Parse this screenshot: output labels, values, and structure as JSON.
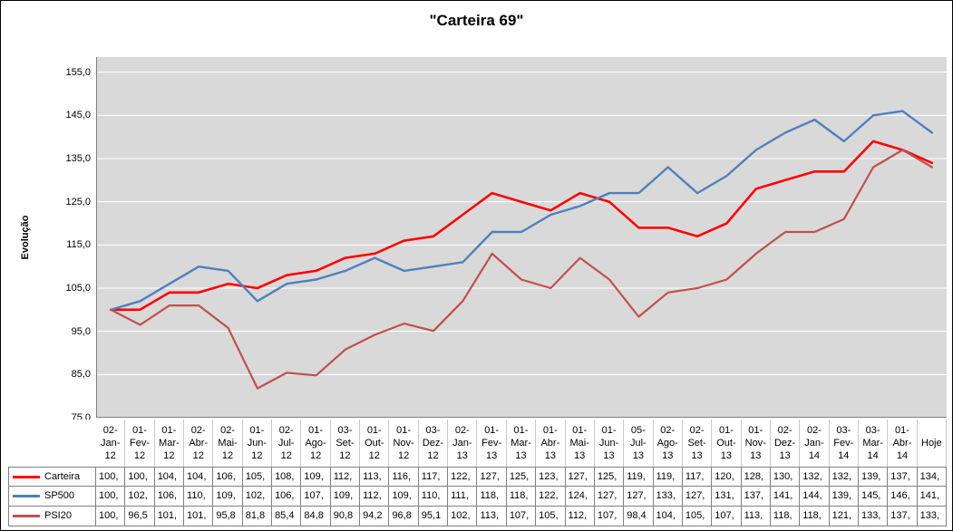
{
  "chart_data": {
    "type": "line",
    "title": "\"Carteira 69\"",
    "ylabel": "Evolução",
    "ylim": [
      75,
      158.5
    ],
    "ytick_start": 75,
    "ytick_step": 10,
    "ytick_labels": [
      "75,0",
      "85,0",
      "95,0",
      "105,0",
      "115,0",
      "125,0",
      "135,0",
      "145,0",
      "155,0"
    ],
    "grid": true,
    "legend_position": "data-table-left",
    "categories": [
      "02-Jan-12",
      "01-Fev-12",
      "01-Mar-12",
      "02-Abr-12",
      "02-Mai-12",
      "01-Jun-12",
      "02-Jul-12",
      "01-Ago-12",
      "03-Set-12",
      "01-Out-12",
      "01-Nov-12",
      "03-Dez-12",
      "02-Jan-13",
      "01-Fev-13",
      "01-Mar-13",
      "01-Abr-13",
      "01-Mai-13",
      "01-Jun-13",
      "05-Jul-13",
      "02-Ago-13",
      "02-Set-13",
      "01-Out-13",
      "01-Nov-13",
      "02-Dez-13",
      "02-Jan-14",
      "03-Fev-14",
      "03-Mar-14",
      "01-Abr-14",
      "Hoje"
    ],
    "series": [
      {
        "name": "Carteira",
        "color": "#FF0000",
        "values": [
          100,
          100,
          104,
          104,
          106,
          105,
          108,
          109,
          112,
          113,
          116,
          117,
          122,
          127,
          125,
          123,
          127,
          125,
          119,
          119,
          117,
          120,
          128,
          130,
          132,
          132,
          139,
          137,
          134
        ],
        "display": [
          "100,",
          "100,",
          "104,",
          "104,",
          "106,",
          "105,",
          "108,",
          "109,",
          "112,",
          "113,",
          "116,",
          "117,",
          "122,",
          "127,",
          "125,",
          "123,",
          "127,",
          "125,",
          "119,",
          "119,",
          "117,",
          "120,",
          "128,",
          "130,",
          "132,",
          "132,",
          "139,",
          "137,",
          "134,"
        ]
      },
      {
        "name": "SP500",
        "color": "#4F81BD",
        "values": [
          100,
          102,
          106,
          110,
          109,
          102,
          106,
          107,
          109,
          112,
          109,
          110,
          111,
          118,
          118,
          122,
          124,
          127,
          127,
          133,
          127,
          131,
          137,
          141,
          144,
          139,
          145,
          146,
          141
        ],
        "display": [
          "100,",
          "102,",
          "106,",
          "110,",
          "109,",
          "102,",
          "106,",
          "107,",
          "109,",
          "112,",
          "109,",
          "110,",
          "111,",
          "118,",
          "118,",
          "122,",
          "124,",
          "127,",
          "127,",
          "133,",
          "127,",
          "131,",
          "137,",
          "141,",
          "144,",
          "139,",
          "145,",
          "146,",
          "141,"
        ]
      },
      {
        "name": "PSI20",
        "color": "#C0504D",
        "values": [
          100,
          96.5,
          101,
          101,
          95.8,
          81.8,
          85.4,
          84.8,
          90.8,
          94.2,
          96.8,
          95.1,
          102,
          113,
          107,
          105,
          112,
          107,
          98.4,
          104,
          105,
          107,
          113,
          118,
          118,
          121,
          133,
          137,
          133
        ],
        "display": [
          "100,",
          "96,5",
          "101,",
          "101,",
          "95,8",
          "81,8",
          "85,4",
          "84,8",
          "90,8",
          "94,2",
          "96,8",
          "95,1",
          "102,",
          "113,",
          "107,",
          "105,",
          "112,",
          "107,",
          "98,4",
          "104,",
          "105,",
          "107,",
          "113,",
          "118,",
          "118,",
          "121,",
          "133,",
          "137,",
          "133,"
        ]
      }
    ],
    "styles": {
      "plot_bg": "#D9D9D9",
      "grid_color": "#FFFFFF",
      "axis_color": "#808080",
      "table_border": "#808080",
      "xlabel_border": "#C9C9C9"
    }
  }
}
